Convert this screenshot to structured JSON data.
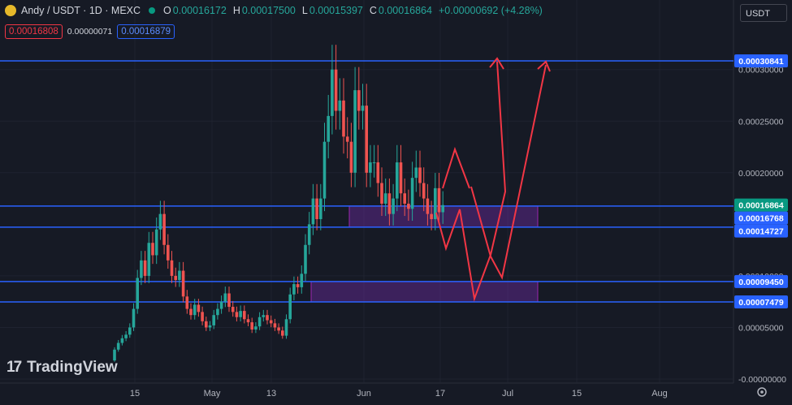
{
  "header": {
    "symbol": "Andy / USDT · 1D · MEXC",
    "open_label": "O",
    "open": "0.00016172",
    "high_label": "H",
    "high": "0.00017500",
    "low_label": "L",
    "low": "0.00015397",
    "close_label": "C",
    "close": "0.00016864",
    "change": "+0.00000692 (+4.28%)"
  },
  "toolbar": {
    "sell_price": "0.00016808",
    "spread": "0.00000071",
    "buy_price": "0.00016879"
  },
  "currency": "USDT",
  "brand": "TradingView",
  "colors": {
    "background": "#161a25",
    "up": "#26a69a",
    "down": "#ef5350",
    "level": "#2962ff",
    "zone": "#7b1fa2",
    "projection": "#f23645"
  },
  "chart_data": {
    "type": "candlestick",
    "yticks": [
      "0.00030000",
      "0.00025000",
      "0.00020000",
      "0.00010000",
      "0.00005000",
      "-0.00000000"
    ],
    "xticks": [
      "15",
      "May",
      "13",
      "Jun",
      "17",
      "Jul",
      "15",
      "Aug"
    ],
    "price_labels": {
      "level_top": "0.00030841",
      "last": "0.00016864",
      "level_mid1": "0.00016768",
      "level_mid2": "0.00014727",
      "level_low1": "0.00009450",
      "level_low2": "0.00007479"
    },
    "levels": [
      0.00030841,
      0.00016768,
      0.00014727,
      9.45e-05,
      7.479e-05
    ],
    "zones": [
      [
        0.00014727,
        0.00016768
      ],
      [
        7.479e-05,
        9.45e-05
      ]
    ],
    "close": [
      2.85e-05,
      3.5e-05,
      3.95e-05,
      4.3e-05,
      5e-05,
      6.8e-05,
      9.8e-05,
      0.000115,
      0.0001,
      0.000132,
      0.00012,
      0.000145,
      0.00016,
      0.00013,
      0.000115,
      0.0001,
      9.6e-05,
      0.000105,
      8e-05,
      6.8e-05,
      6.2e-05,
      7.2e-05,
      6.5e-05,
      5.6e-05,
      5e-05,
      5.2e-05,
      6.2e-05,
      6.8e-05,
      7.5e-05,
      8.3e-05,
      7e-05,
      6.5e-05,
      6e-05,
      6.6e-05,
      5.8e-05,
      5.5e-05,
      4.8e-05,
      5.1e-05,
      6e-05,
      6.2e-05,
      5.7e-05,
      5.4e-05,
      5e-05,
      4.7e-05,
      4.2e-05,
      5.8e-05,
      8.2e-05,
      9.2e-05,
      8.9e-05,
      0.000102,
      0.00013,
      0.00015,
      0.000175,
      0.000155,
      0.000175,
      0.00023,
      0.000255,
      0.0003,
      0.00026,
      0.00027,
      0.000235,
      0.00023,
      0.0002,
      0.00028,
      0.00026,
      0.000265,
      0.0002,
      0.00021,
      0.00021,
      0.00019,
      0.00017,
      0.00018,
      0.00016,
      0.000175,
      0.00021,
      0.00018,
      0.00017,
      0.000165,
      0.000195,
      0.000205,
      0.00019,
      0.000175,
      0.00016,
      0.000155,
      0.000185,
      0.0001617,
      0.0001686
    ]
  }
}
